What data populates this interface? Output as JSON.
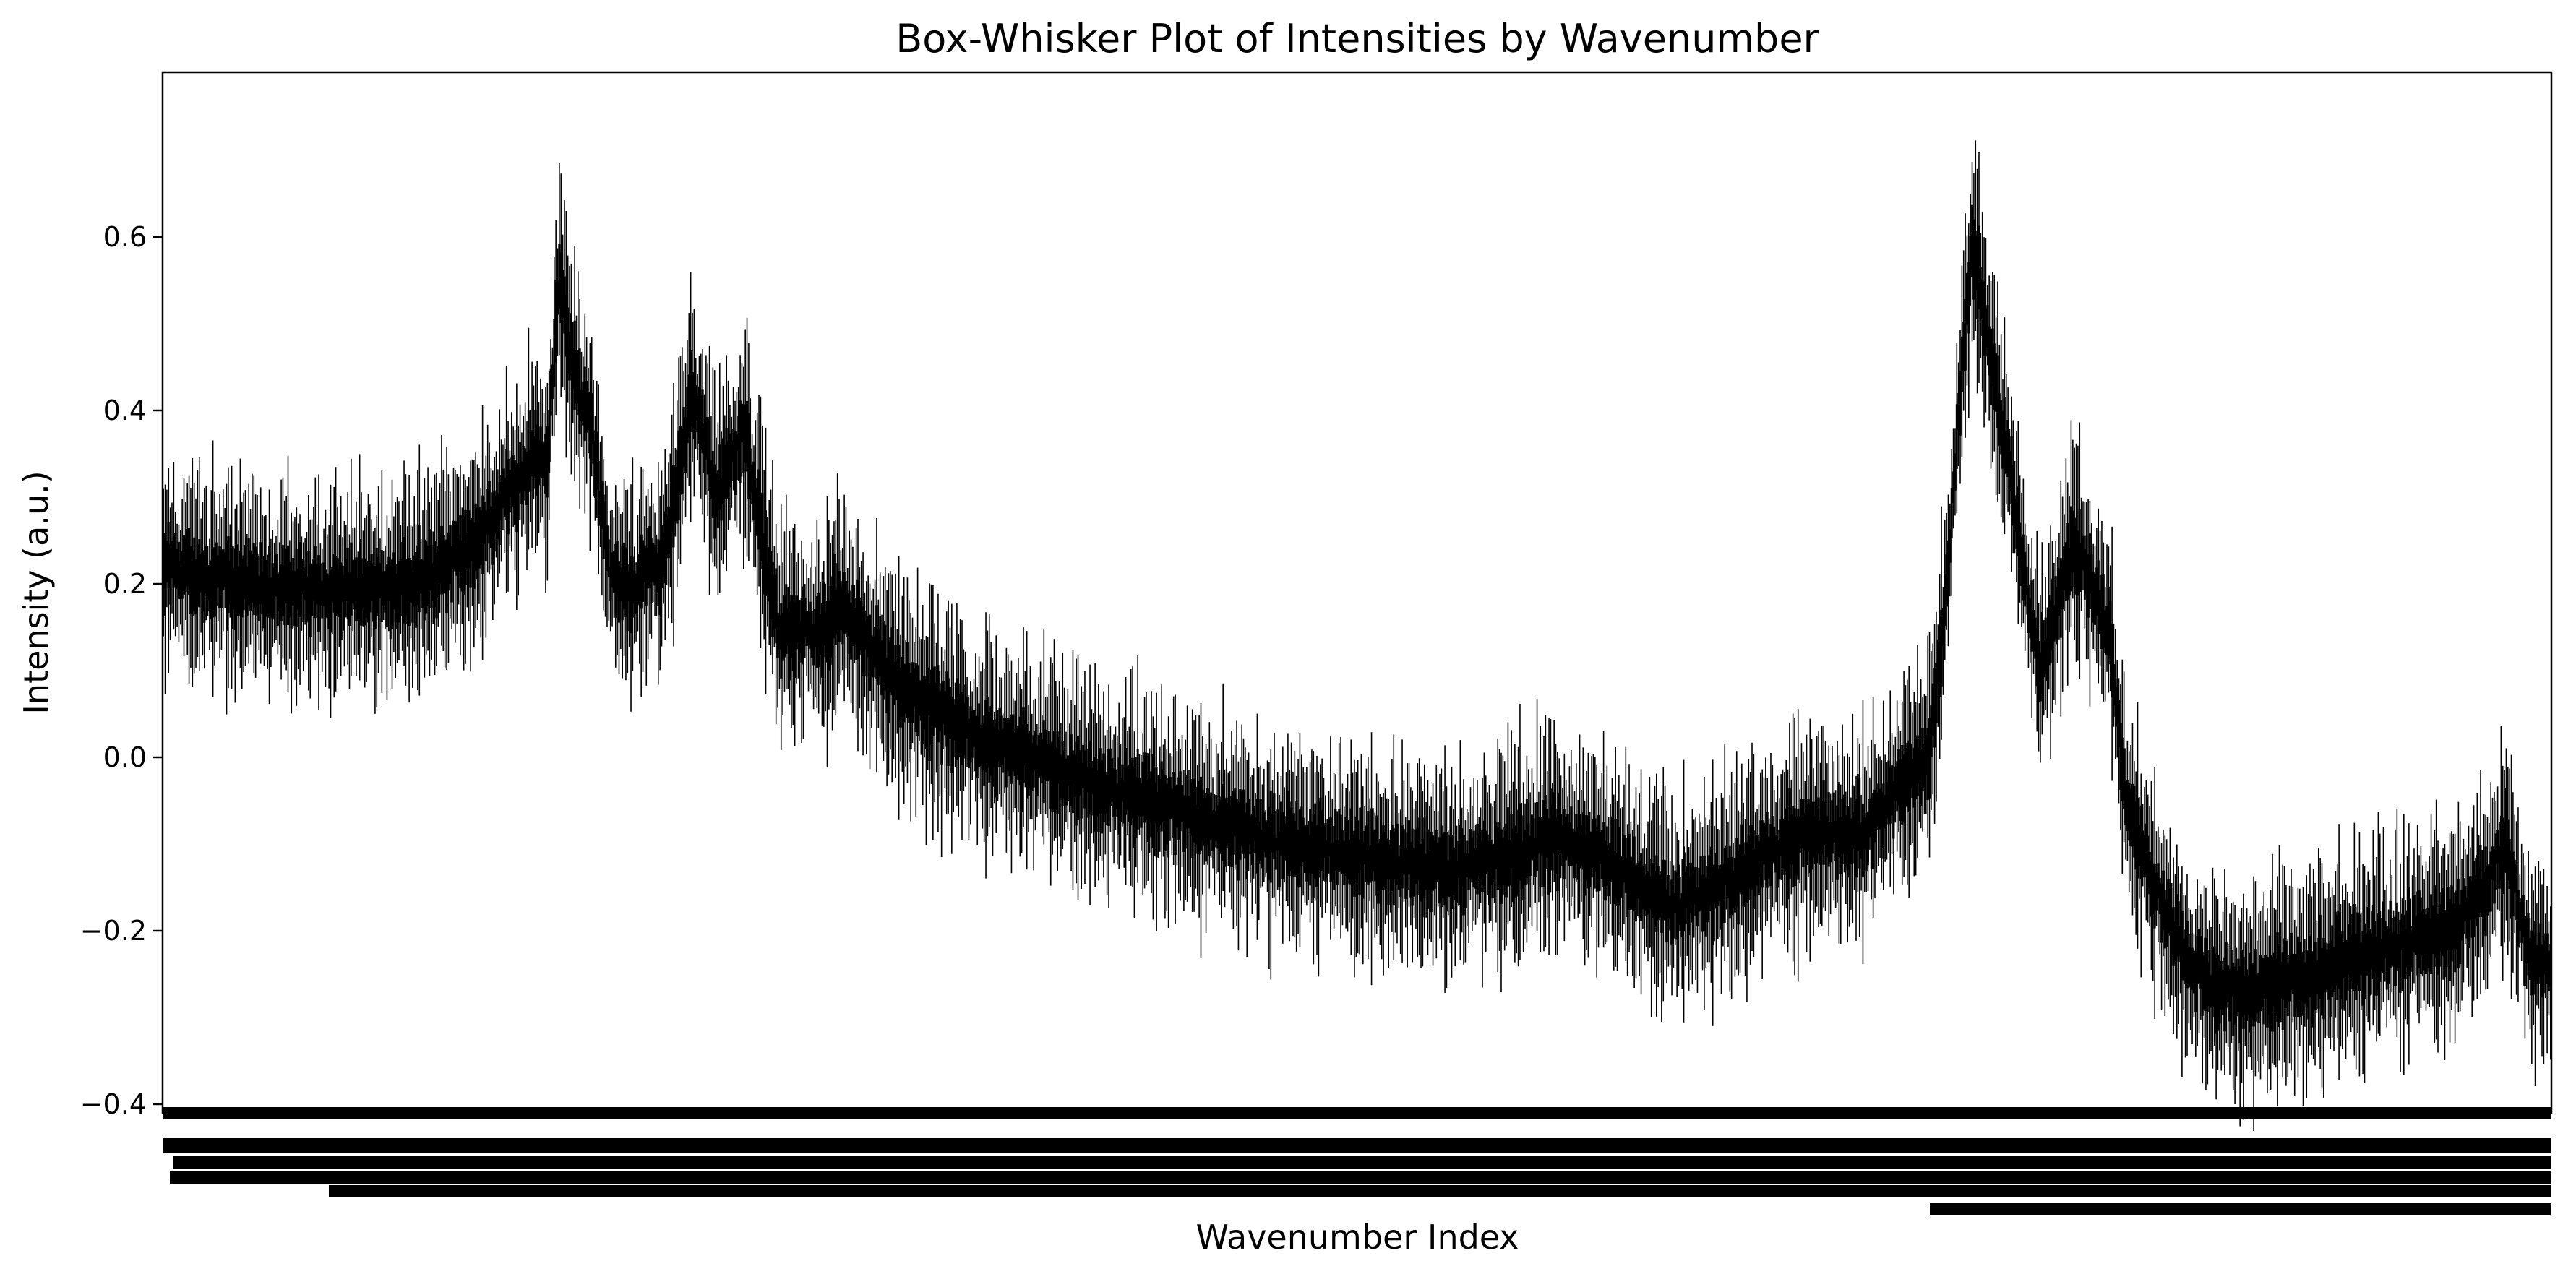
{
  "chart_data": {
    "type": "box",
    "title": "Box-Whisker Plot of Intensities by Wavenumber",
    "xlabel": "Wavenumber Index",
    "ylabel": "Intensity (a.u.)",
    "ylim": [
      -0.41,
      0.79
    ],
    "yticks": [
      -0.4,
      -0.2,
      0.0,
      0.2,
      0.4,
      0.6
    ],
    "ytick_labels": [
      "−0.4",
      "−0.2",
      "0.0",
      "0.2",
      "0.4",
      "0.6"
    ],
    "n_boxes": 1400,
    "x_tick_labels": "dense, illegible (one per wavenumber index)",
    "median_profile": {
      "index": [
        0,
        40,
        100,
        150,
        180,
        200,
        215,
        225,
        232,
        240,
        250,
        262,
        270,
        290,
        300,
        310,
        325,
        340,
        360,
        385,
        395,
        430,
        480,
        560,
        660,
        760,
        820,
        855,
        870,
        880,
        900,
        960,
        1000,
        1035,
        1045,
        1060,
        1100,
        1120,
        1140,
        1150,
        1158,
        1168,
        1178,
        1190,
        1200,
        1220,
        1260,
        1300,
        1340,
        1360,
        1373,
        1385,
        1399
      ],
      "intensity": [
        0.22,
        0.2,
        0.19,
        0.2,
        0.24,
        0.3,
        0.34,
        0.35,
        0.55,
        0.45,
        0.39,
        0.21,
        0.19,
        0.22,
        0.3,
        0.42,
        0.3,
        0.38,
        0.15,
        0.14,
        0.18,
        0.08,
        0.02,
        -0.04,
        -0.1,
        -0.13,
        -0.09,
        -0.13,
        -0.16,
        -0.17,
        -0.16,
        -0.09,
        -0.08,
        0.0,
        0.2,
        0.6,
        0.1,
        0.25,
        0.15,
        -0.05,
        -0.1,
        -0.15,
        -0.2,
        -0.24,
        -0.26,
        -0.27,
        -0.25,
        -0.22,
        -0.2,
        -0.15,
        -0.1,
        -0.22,
        -0.25
      ]
    },
    "grid": false,
    "legend": "none"
  }
}
